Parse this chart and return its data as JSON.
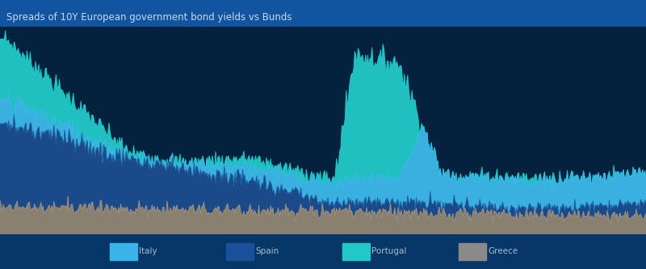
{
  "title": "Spreads of 10Y European government bond yields vs Bunds",
  "background_color": "#04213e",
  "plot_bg_color": "#04213e",
  "header_color": "#1155a0",
  "legend_bg_color": "#073668",
  "title_color": "#c8d8e8",
  "title_fontsize": 8.5,
  "legend_colors": [
    "#3ab4e8",
    "#1a4f9a",
    "#20c8c8",
    "#8a8a8a"
  ],
  "legend_labels": [
    "Italy",
    "Spain",
    "Portugal",
    "Greece"
  ],
  "series_colors": {
    "teal": "#20c0c0",
    "light_blue": "#3ab0e0",
    "dark_blue": "#1a4a8a",
    "gray": "#8a8070"
  }
}
